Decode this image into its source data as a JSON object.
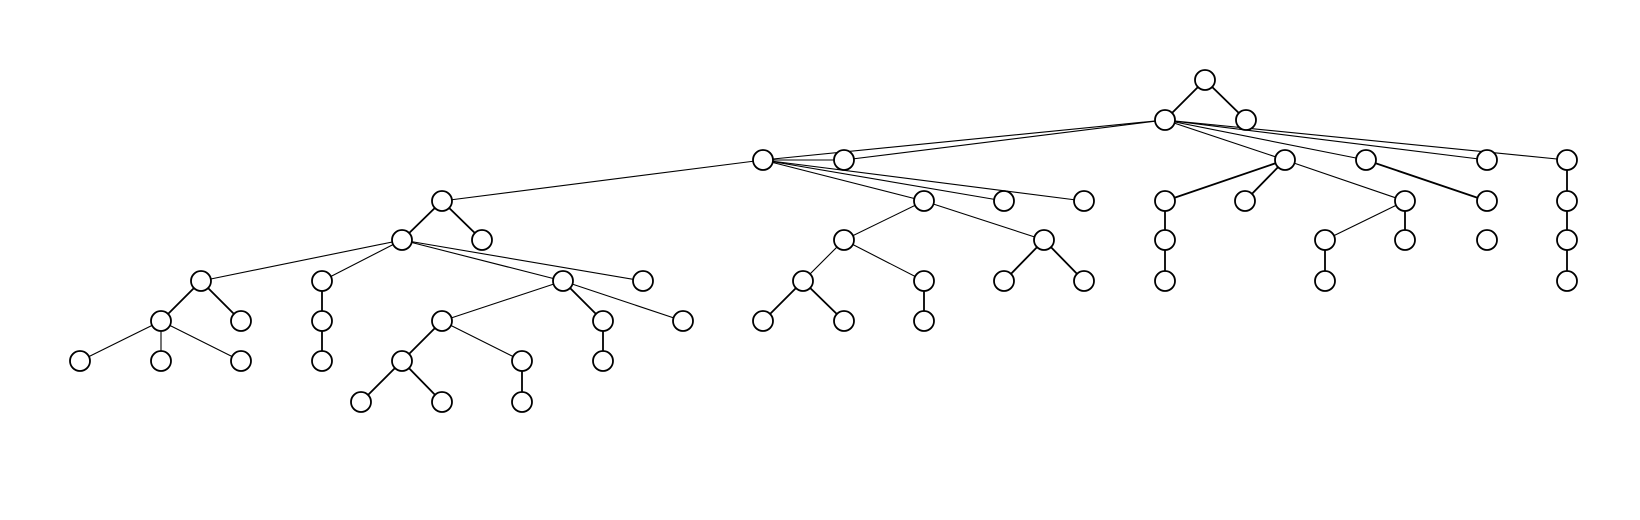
{
  "diagram": {
    "type": "tree",
    "colors": {
      "background": "#ffffff",
      "node_fill": "#ffffff",
      "stroke": "#000000"
    },
    "nodes": [
      "n1",
      "n2",
      "n3",
      "n4",
      "n5",
      "n6",
      "n7",
      "n8",
      "n9",
      "n10",
      "n11",
      "n12",
      "n13",
      "n14",
      "n15",
      "n16",
      "n17",
      "n18",
      "n19",
      "n20",
      "n21",
      "n22",
      "n23",
      "n24",
      "n25",
      "n26",
      "n27",
      "n28",
      "n29",
      "n30",
      "n31",
      "n32",
      "n33",
      "n34",
      "n35",
      "n36",
      "n37",
      "n38",
      "n39",
      "n40",
      "n41",
      "n42",
      "n43",
      "n44",
      "n45",
      "n46",
      "n47",
      "n48",
      "n49",
      "n50",
      "n51",
      "n52",
      "n53",
      "n54",
      "n55",
      "n56",
      "n57",
      "n58",
      "n59",
      "n60",
      "n61",
      "n62",
      "n63",
      "n64",
      "n65",
      "n66",
      "n67"
    ],
    "edges": [
      [
        "n1",
        "n2"
      ],
      [
        "n1",
        "n3"
      ],
      [
        "n2",
        "n4"
      ],
      [
        "n2",
        "n5"
      ],
      [
        "n2",
        "n6"
      ],
      [
        "n2",
        "n7"
      ],
      [
        "n2",
        "n8"
      ],
      [
        "n2",
        "n9"
      ],
      [
        "n4",
        "n10"
      ],
      [
        "n4",
        "n11"
      ],
      [
        "n4",
        "n12"
      ],
      [
        "n4",
        "n13"
      ],
      [
        "n4",
        "n14"
      ],
      [
        "n6",
        "n15"
      ],
      [
        "n6",
        "n16"
      ],
      [
        "n6",
        "n17"
      ],
      [
        "n7",
        "n18"
      ],
      [
        "n9",
        "n19"
      ],
      [
        "n10",
        "n20"
      ],
      [
        "n10",
        "n21"
      ],
      [
        "n11",
        "n22"
      ],
      [
        "n11",
        "n23"
      ],
      [
        "n15",
        "n24"
      ],
      [
        "n16",
        "n25"
      ],
      [
        "n16",
        "n26"
      ],
      [
        "n18",
        "n27"
      ],
      [
        "n19",
        "n28"
      ],
      [
        "n20",
        "n29"
      ],
      [
        "n20",
        "n30"
      ],
      [
        "n20",
        "n31"
      ],
      [
        "n20",
        "n32"
      ],
      [
        "n22",
        "n33"
      ],
      [
        "n22",
        "n34"
      ],
      [
        "n23",
        "n35"
      ],
      [
        "n23",
        "n36"
      ],
      [
        "n24",
        "n37"
      ],
      [
        "n25",
        "n38"
      ],
      [
        "n27",
        "n39"
      ],
      [
        "n28",
        "n40"
      ],
      [
        "n29",
        "n41"
      ],
      [
        "n29",
        "n42"
      ],
      [
        "n30",
        "n43"
      ],
      [
        "n31",
        "n44"
      ],
      [
        "n31",
        "n45"
      ],
      [
        "n31",
        "n46"
      ],
      [
        "n33",
        "n47"
      ],
      [
        "n33",
        "n48"
      ],
      [
        "n34",
        "n49"
      ],
      [
        "n41",
        "n50"
      ],
      [
        "n41",
        "n51"
      ],
      [
        "n41",
        "n52"
      ],
      [
        "n43",
        "n53"
      ],
      [
        "n44",
        "n54"
      ],
      [
        "n44",
        "n55"
      ],
      [
        "n45",
        "n56"
      ],
      [
        "n47",
        "n57"
      ],
      [
        "n47",
        "n58"
      ],
      [
        "n49",
        "n59"
      ],
      [
        "n53",
        "n60"
      ],
      [
        "n54",
        "n61"
      ],
      [
        "n54",
        "n62"
      ],
      [
        "n55",
        "n63"
      ],
      [
        "n56",
        "n64"
      ],
      [
        "n61",
        "n65"
      ],
      [
        "n61",
        "n66"
      ],
      [
        "n63",
        "n67"
      ]
    ]
  }
}
